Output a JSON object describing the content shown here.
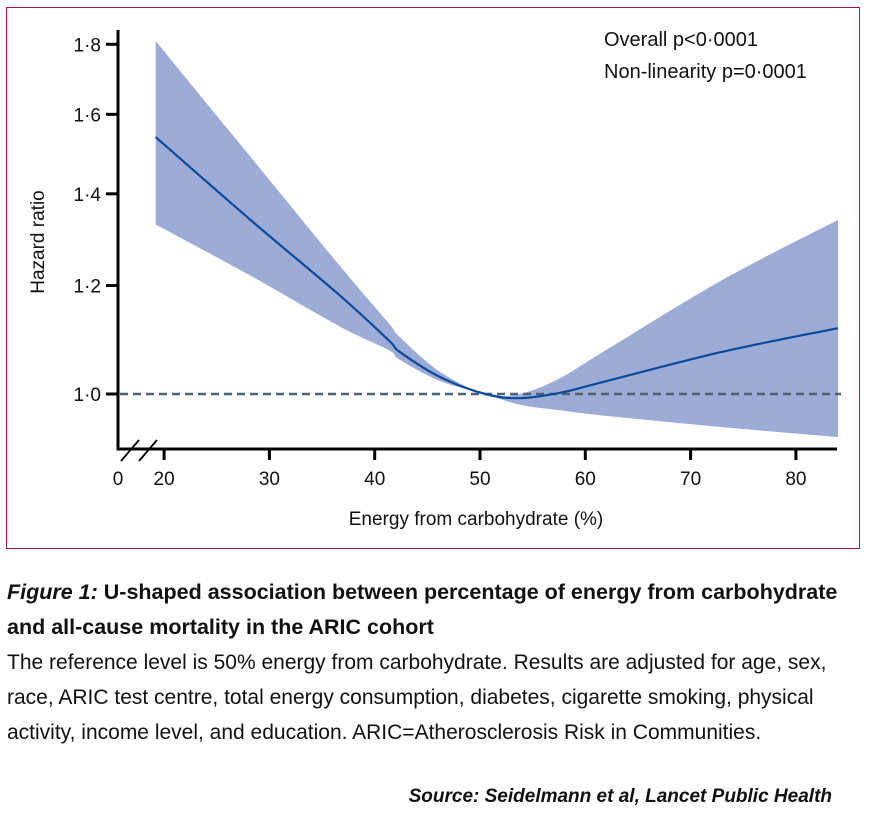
{
  "chart_data": {
    "type": "line",
    "title": "",
    "xlabel": "Energy from carbohydrate (%)",
    "ylabel": "Hazard ratio",
    "yscale": "log",
    "xlim": [
      0,
      84
    ],
    "ylim": [
      0.92,
      1.85
    ],
    "x_axis_break": "between 0 and 20",
    "x_ticks": [
      0,
      20,
      30,
      40,
      50,
      60,
      70,
      80
    ],
    "x_tick_labels": [
      "0",
      "20",
      "30",
      "40",
      "50",
      "60",
      "70",
      "80"
    ],
    "y_ticks": [
      1.0,
      1.2,
      1.4,
      1.6,
      1.8
    ],
    "y_tick_labels": [
      "1·0",
      "1·2",
      "1·4",
      "1·6",
      "1·8"
    ],
    "reference_line": {
      "y": 1.0,
      "style": "dashed"
    },
    "grid": false,
    "annotations": [
      "Overall p<0·0001",
      "Non-linearity p=0·0001"
    ],
    "annotation_position": "top-right",
    "x": [
      19.2,
      28.2,
      36.7,
      41.3,
      42.4,
      46.2,
      50.5,
      53.8,
      57.6,
      61.4,
      72.9,
      84.0
    ],
    "series": [
      {
        "name": "Hazard ratio",
        "values": [
          1.54,
          1.34,
          1.18,
          1.095,
          1.073,
          1.029,
          1.0,
          0.993,
          1.002,
          1.019,
          1.073,
          1.117
        ]
      },
      {
        "name": "95% CI lower",
        "values": [
          1.33,
          1.22,
          1.12,
          1.077,
          1.059,
          1.022,
          1.0,
          0.982,
          0.973,
          0.965,
          0.946,
          0.93
        ]
      },
      {
        "name": "95% CI upper",
        "values": [
          1.81,
          1.49,
          1.24,
          1.127,
          1.1,
          1.038,
          1.0,
          1.0,
          1.027,
          1.07,
          1.21,
          1.34
        ]
      }
    ],
    "colors": {
      "line": "#0b4a9b",
      "band": "#9dacd6",
      "reference": "#4d6370",
      "axis": "#000000"
    }
  },
  "frame_color": "#a0173e",
  "caption": {
    "figure_label": "Figure 1:",
    "title": " U-shaped association between percentage of energy from carbohydrate and all-cause mortality in the ARIC cohort",
    "body": "The reference level is 50% energy from carbohydrate. Results are adjusted for age, sex, race, ARIC test centre, total energy consumption, diabetes, cigarette smoking, physical activity, income level, and education. ARIC=Atherosclerosis Risk in Communities.",
    "source": "Source: Seidelmann et al, Lancet Public Health"
  }
}
